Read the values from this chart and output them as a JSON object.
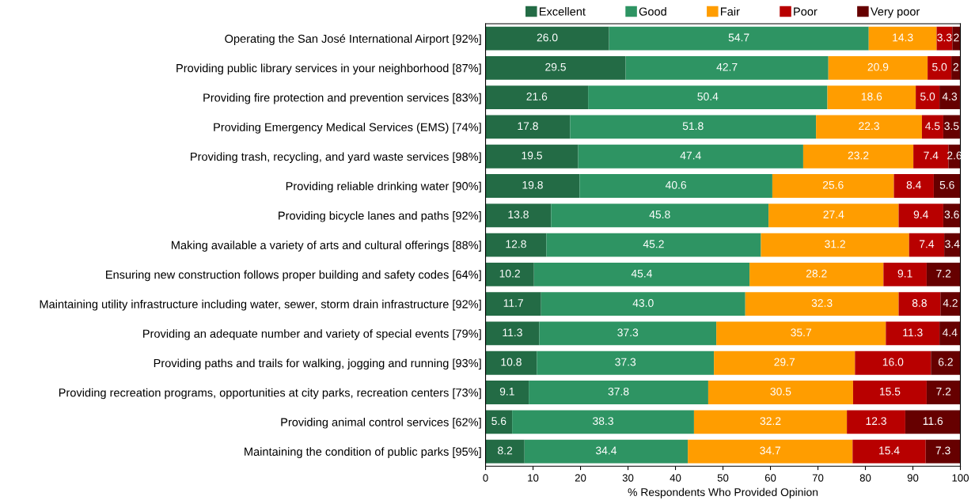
{
  "chart_data": {
    "type": "bar",
    "orientation": "horizontal",
    "stacked": true,
    "xlabel": "% Respondents Who Provided Opinion",
    "categories": [
      "Operating the San José International Airport [92%]",
      "Providing public library services in your neighborhood [87%]",
      "Providing fire protection and prevention services [83%]",
      "Providing Emergency Medical Services (EMS) [74%]",
      "Providing trash, recycling, and yard waste services [98%]",
      "Providing reliable drinking water [90%]",
      "Providing bicycle lanes and paths [92%]",
      "Making available a variety of arts and cultural offerings [88%]",
      "Ensuring new construction follows proper building and safety codes [64%]",
      "Maintaining utility infrastructure including water, sewer, storm drain infrastructure [92%]",
      "Providing an adequate number and variety of special events [79%]",
      "Providing paths and trails for walking, jogging and running [93%]",
      "Providing recreation programs, opportunities at city parks, recreation centers [73%]",
      "Providing animal control services [62%]",
      "Maintaining the condition of public parks [95%]"
    ],
    "series": [
      {
        "name": "Excellent",
        "color": "#236b45",
        "values": [
          26.0,
          29.5,
          21.6,
          17.8,
          19.5,
          19.8,
          13.8,
          12.8,
          10.2,
          11.7,
          11.3,
          10.8,
          9.1,
          5.6,
          8.2
        ],
        "value_labels": [
          "26.0",
          "29.5",
          "21.6",
          "17.8",
          "19.5",
          "19.8",
          "13.8",
          "12.8",
          "10.2",
          "11.7",
          "11.3",
          "10.8",
          "9.1",
          "5.6",
          "8.2"
        ]
      },
      {
        "name": "Good",
        "color": "#2e9463",
        "values": [
          54.7,
          42.7,
          50.4,
          51.8,
          47.4,
          40.6,
          45.8,
          45.2,
          45.4,
          43.0,
          37.3,
          37.3,
          37.8,
          38.3,
          34.4
        ],
        "value_labels": [
          "54.7",
          "42.7",
          "50.4",
          "51.8",
          "47.4",
          "40.6",
          "45.8",
          "45.2",
          "45.4",
          "43.0",
          "37.3",
          "37.3",
          "37.8",
          "38.3",
          "34.4"
        ]
      },
      {
        "name": "Fair",
        "color": "#ff9d00",
        "values": [
          14.3,
          20.9,
          18.6,
          22.3,
          23.2,
          25.6,
          27.4,
          31.2,
          28.2,
          32.3,
          35.7,
          29.7,
          30.5,
          32.2,
          34.7
        ],
        "value_labels": [
          "14.3",
          "20.9",
          "18.6",
          "22.3",
          "23.2",
          "25.6",
          "27.4",
          "31.2",
          "28.2",
          "32.3",
          "35.7",
          "29.7",
          "30.5",
          "32.2",
          "34.7"
        ]
      },
      {
        "name": "Poor",
        "color": "#b80000",
        "values": [
          3.3,
          5.0,
          5.0,
          4.5,
          7.4,
          8.4,
          9.4,
          7.4,
          9.1,
          8.8,
          11.3,
          16.0,
          15.5,
          12.3,
          15.4
        ],
        "value_labels": [
          "3.3",
          "5.0",
          "5.0",
          "4.5",
          "7.4",
          "8.4",
          "9.4",
          "7.4",
          "9.1",
          "8.8",
          "11.3",
          "16.0",
          "15.5",
          "12.3",
          "15.4"
        ]
      },
      {
        "name": "Very poor",
        "color": "#660000",
        "values": [
          1.7,
          1.9,
          4.3,
          3.5,
          2.6,
          5.6,
          3.6,
          3.4,
          7.2,
          4.2,
          4.4,
          6.2,
          7.2,
          11.6,
          7.3
        ],
        "value_labels": [
          "2",
          "2",
          "4.3",
          "3.5",
          "2.6",
          "5.6",
          "3.6",
          "3.4",
          "7.2",
          "4.2",
          "4.4",
          "6.2",
          "7.2",
          "11.6",
          "7.3"
        ]
      }
    ],
    "xlim": [
      0,
      100
    ],
    "xticks": [
      0,
      10,
      20,
      30,
      40,
      50,
      60,
      70,
      80,
      90,
      100
    ],
    "grid": false,
    "legend": "top"
  }
}
